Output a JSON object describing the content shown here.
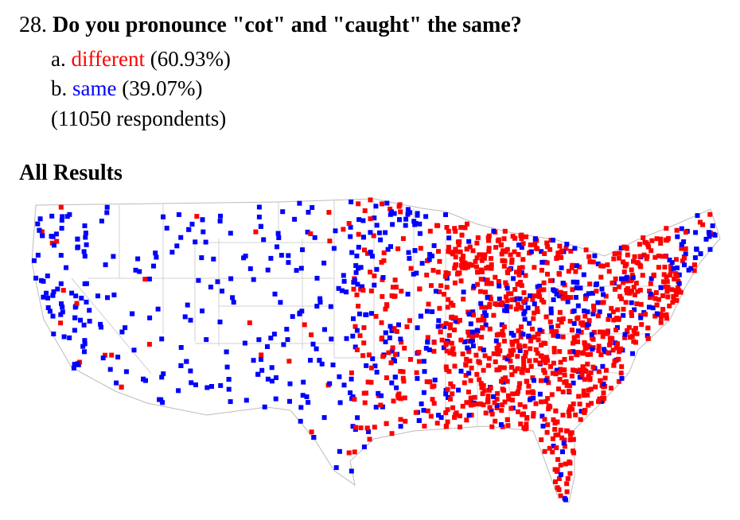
{
  "question": {
    "number": "28.",
    "text": "Do you pronounce \"cot\" and \"caught\" the same?"
  },
  "answers": [
    {
      "letter": "a.",
      "label": "different",
      "percent": "(60.93%)",
      "color": "#ff0000"
    },
    {
      "letter": "b.",
      "label": "same",
      "percent": "(39.07%)",
      "color": "#0000ff"
    }
  ],
  "respondents": "(11050 respondents)",
  "section_heading": "All Results",
  "map": {
    "type": "dot-map",
    "region": "contiguous United States",
    "legend_colors": {
      "different": "#ff0000",
      "same": "#0000ff"
    },
    "border_color": "#bbbbbb"
  }
}
